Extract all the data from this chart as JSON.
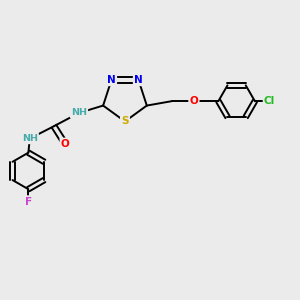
{
  "bg_color": "#ebebeb",
  "atom_colors": {
    "C": "#000000",
    "N": "#0000ee",
    "S": "#ccaa00",
    "O": "#ff0000",
    "F": "#cc44cc",
    "Cl": "#22bb22",
    "H": "#44aaaa"
  },
  "bond_color": "#000000",
  "figsize": [
    3.0,
    3.0
  ],
  "dpi": 100,
  "lw": 1.4,
  "fs": 7.5,
  "fs_small": 6.8
}
